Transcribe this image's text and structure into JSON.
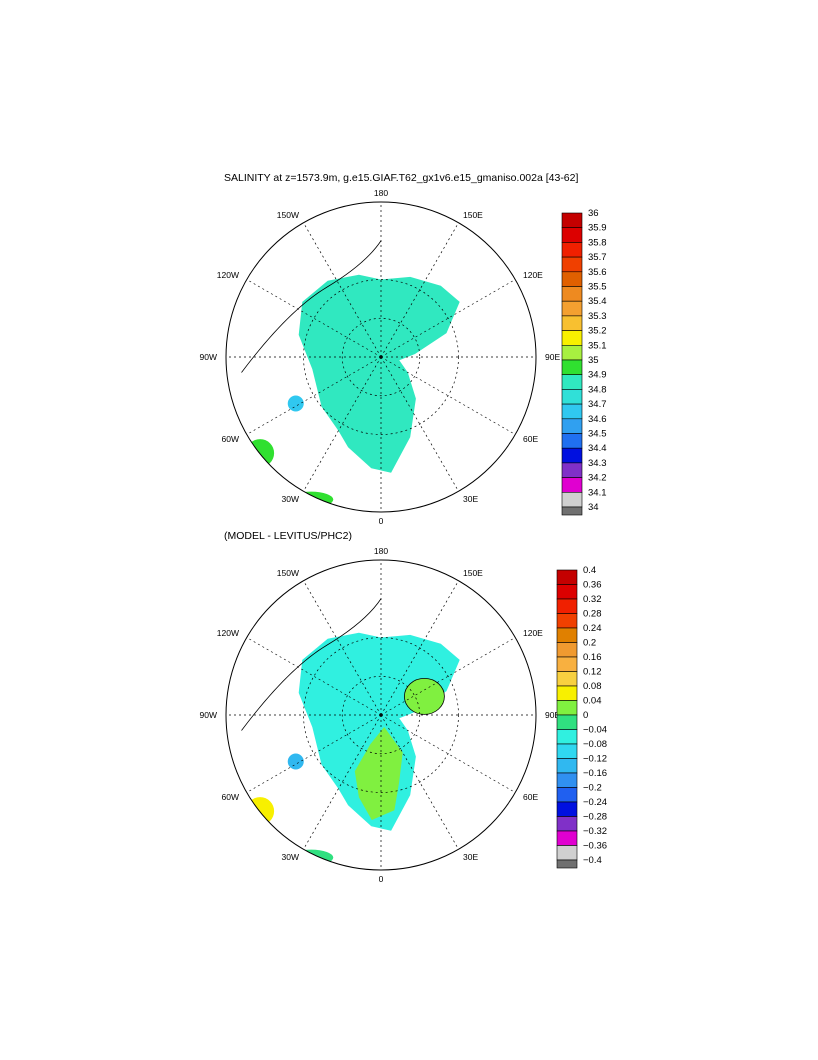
{
  "chart_data": [
    {
      "type": "heatmap",
      "projection": "north-polar-stereographic",
      "title": "SALINITY at z=1573.9m, g.e15.GIAF.T62_gx1v6.e15_gmaniso.002a [43-62]",
      "longitude_labels": [
        "180",
        "150E",
        "120E",
        "90E",
        "60E",
        "30E",
        "0",
        "30W",
        "60W",
        "90W",
        "120W",
        "150W"
      ],
      "colorbar": {
        "ticks": [
          "36",
          "35.9",
          "35.8",
          "35.7",
          "35.6",
          "35.5",
          "35.4",
          "35.3",
          "35.2",
          "35.1",
          "35",
          "34.9",
          "34.8",
          "34.7",
          "34.6",
          "34.5",
          "34.4",
          "34.3",
          "34.2",
          "34.1",
          "34"
        ],
        "colors": [
          "#c40000",
          "#dc0000",
          "#f02000",
          "#f04000",
          "#e06000",
          "#ee8a20",
          "#f4a030",
          "#f8c030",
          "#f8f000",
          "#a8f040",
          "#30e030",
          "#30e8c0",
          "#30e0d8",
          "#30c8f0",
          "#30a0f0",
          "#2070f0",
          "#0010e0",
          "#8030c8",
          "#e000d0",
          "#d0d0d0"
        ],
        "value_range": [
          34,
          36
        ],
        "dominant_field_value_range": [
          34.9,
          35.0
        ]
      }
    },
    {
      "type": "heatmap",
      "projection": "north-polar-stereographic",
      "title": "(MODEL - LEVITUS/PHC2)",
      "longitude_labels": [
        "180",
        "150E",
        "120E",
        "90E",
        "60E",
        "30E",
        "0",
        "30W",
        "60W",
        "90W",
        "120W",
        "150W"
      ],
      "colorbar": {
        "ticks": [
          "0.4",
          "0.36",
          "0.32",
          "0.28",
          "0.24",
          "0.2",
          "0.16",
          "0.12",
          "0.08",
          "0.04",
          "0",
          "−0.04",
          "−0.08",
          "−0.12",
          "−0.16",
          "−0.2",
          "−0.24",
          "−0.28",
          "−0.32",
          "−0.36",
          "−0.4"
        ],
        "colors": [
          "#c40000",
          "#dc0000",
          "#f02000",
          "#f04000",
          "#e08000",
          "#f09a30",
          "#f8b040",
          "#f8d040",
          "#f8f000",
          "#80f040",
          "#30e080",
          "#30f0e0",
          "#30d8f0",
          "#30b8f0",
          "#3090f0",
          "#2060f0",
          "#0010e0",
          "#8030c8",
          "#e000d0",
          "#d0d0d0"
        ],
        "value_range": [
          -0.4,
          0.4
        ]
      }
    }
  ]
}
